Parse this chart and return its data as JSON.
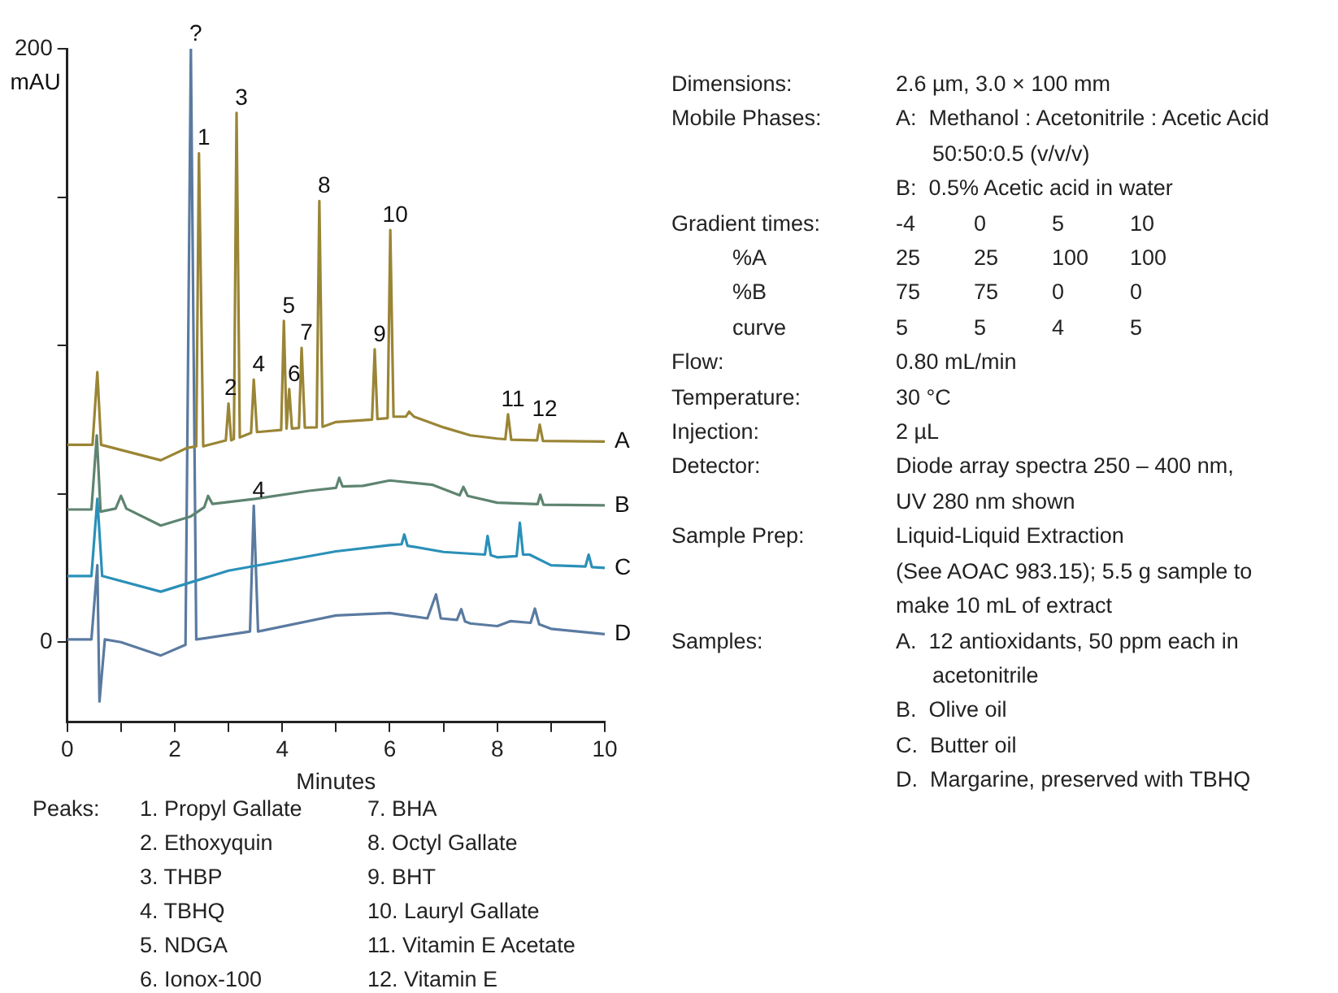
{
  "chart_data": {
    "type": "line",
    "xlabel": "Minutes",
    "ylabel": "mAU",
    "xlim": [
      0,
      10
    ],
    "xticks": [
      0,
      {
        "value": 1,
        "label": null
      },
      2,
      {
        "value": 3,
        "label": null
      },
      4,
      {
        "value": 5,
        "label": null
      },
      6,
      {
        "value": 7,
        "label": null
      },
      8,
      {
        "value": 9,
        "label": null
      },
      10
    ],
    "ylim": [
      -27,
      200
    ],
    "yticks": [
      0,
      {
        "value": 50,
        "label": null
      },
      {
        "value": 100,
        "label": null
      },
      {
        "value": 150,
        "label": null
      },
      200
    ],
    "grid": false,
    "legend": false,
    "marker": "none",
    "line_style": "solid",
    "series": [
      {
        "name": "A",
        "color": "#9a8535",
        "x": [
          0,
          0.47,
          0.56,
          0.63,
          1.74,
          2.22,
          2.4,
          2.45,
          2.53,
          2.95,
          3.0,
          3.05,
          3.1,
          3.15,
          3.21,
          3.42,
          3.47,
          3.53,
          3.98,
          4.03,
          4.08,
          4.13,
          4.18,
          4.31,
          4.36,
          4.42,
          4.64,
          4.69,
          4.75,
          5.0,
          5.67,
          5.72,
          5.77,
          5.96,
          6.01,
          6.07,
          6.3,
          6.36,
          6.45,
          7.0,
          7.5,
          8.0,
          8.15,
          8.2,
          8.26,
          8.74,
          8.79,
          8.85,
          10
        ],
        "values": [
          66.5,
          66.5,
          91,
          66.5,
          61.3,
          65.4,
          66,
          164.8,
          66,
          68,
          80.4,
          68,
          68.5,
          178.4,
          69,
          70.5,
          88.5,
          70.8,
          71.5,
          108.3,
          72,
          85.3,
          72,
          72.2,
          99.2,
          72.3,
          72.4,
          148.7,
          72.6,
          74.2,
          75,
          98.7,
          75.2,
          75.5,
          138.9,
          76,
          76,
          77.7,
          76,
          72.4,
          69.7,
          68.6,
          68.4,
          76.8,
          68.2,
          68,
          73.3,
          67.8,
          67.6
        ]
      },
      {
        "name": "B",
        "color": "#5e8470",
        "x": [
          0,
          0.45,
          0.55,
          0.62,
          0.9,
          1.0,
          1.1,
          1.74,
          2.3,
          2.55,
          2.62,
          2.7,
          3.5,
          4.5,
          5.0,
          5.06,
          5.12,
          5.5,
          6.0,
          6.8,
          7.3,
          7.37,
          7.45,
          8.0,
          8.75,
          8.8,
          8.86,
          10
        ],
        "values": [
          44.7,
          44.7,
          69.7,
          44,
          45,
          49.3,
          45,
          39.3,
          42.4,
          45.5,
          49.3,
          46.6,
          48.3,
          51,
          52,
          55.4,
          52.5,
          52.7,
          54.5,
          53,
          49.5,
          52.3,
          49.3,
          47,
          46.5,
          49.7,
          46.3,
          46.1
        ]
      },
      {
        "name": "C",
        "color": "#2a90b8",
        "x": [
          0,
          0.45,
          0.56,
          0.65,
          1.74,
          3.0,
          5.0,
          6.0,
          6.22,
          6.27,
          6.33,
          7.0,
          7.77,
          7.82,
          7.88,
          8.0,
          8.36,
          8.42,
          8.48,
          8.6,
          9.0,
          9.64,
          9.7,
          9.76,
          10
        ],
        "values": [
          22.3,
          22.3,
          48.3,
          22.3,
          17,
          24.1,
          30.6,
          32.7,
          33,
          36.3,
          32.5,
          30.4,
          29.5,
          35.8,
          29.3,
          28.6,
          29,
          40.2,
          29.5,
          29.5,
          25.9,
          25.5,
          29.5,
          25.3,
          25
        ]
      },
      {
        "name": "D",
        "color": "#5a7aa0",
        "x": [
          0,
          0.45,
          0.56,
          0.6,
          0.7,
          1.0,
          1.74,
          2.2,
          2.3,
          2.4,
          3.4,
          3.47,
          3.55,
          5.0,
          6.0,
          6.7,
          6.86,
          6.95,
          7.25,
          7.33,
          7.4,
          7.5,
          8.0,
          8.25,
          8.62,
          8.7,
          8.78,
          9.0,
          10
        ],
        "values": [
          0.9,
          0.9,
          25.9,
          -20,
          0.9,
          0,
          -4.5,
          -0.9,
          200,
          0.9,
          3.6,
          46,
          3.6,
          9,
          9.8,
          8,
          16.1,
          8,
          7.5,
          11.1,
          7,
          6.3,
          5.4,
          7.1,
          6.5,
          11.3,
          6,
          4.5,
          2.7
        ]
      }
    ],
    "annotations": [
      {
        "text": "?",
        "x": 2.3,
        "y": 200
      },
      {
        "text": "1",
        "x": 2.45,
        "y": 164.8
      },
      {
        "text": "2",
        "x": 2.95,
        "y": 80.4
      },
      {
        "text": "3",
        "x": 3.15,
        "y": 178.4
      },
      {
        "text": "4",
        "x": 3.47,
        "y": 88.5
      },
      {
        "text": "5",
        "x": 4.03,
        "y": 108.3
      },
      {
        "text": "6",
        "x": 4.13,
        "y": 85.3
      },
      {
        "text": "7",
        "x": 4.36,
        "y": 99.2
      },
      {
        "text": "8",
        "x": 4.69,
        "y": 148.7
      },
      {
        "text": "9",
        "x": 5.72,
        "y": 98.7
      },
      {
        "text": "10",
        "x": 6.01,
        "y": 138.9
      },
      {
        "text": "11",
        "x": 8.2,
        "y": 76.8
      },
      {
        "text": "12",
        "x": 8.79,
        "y": 73.3
      },
      {
        "text": "4",
        "x": 3.47,
        "y": 46
      },
      "Peaks:\t1. Propyl Gallate\t7. BHA",
      "\t2. Ethoxyquin\t8. Octyl Gallate",
      "\t3. THBP\t9. BHT",
      "\t4. TBHQ\t10. Lauryl Gallate",
      "\t5. NDGA\t11. Vitamin E Acetate",
      "\t6. Ionox-100\t12. Vitamin E",
      "Dimensions:\t2.6 µm, 3.0 × 100 mm",
      "Mobile Phases:\tA:  Methanol : Acetonitrile : Acetic Acid",
      "\t      50:50:0.5 (v/v/v)",
      "\tB:  0.5% Acetic acid in water",
      "Gradient times:\t-4\t0\t5\t10",
      "          %A\t25\t25\t100\t100",
      "          %B\t75\t75\t0\t0",
      "          curve\t5\t5\t4\t5",
      "Flow:\t0.80 mL/min",
      "Temperature:\t30 °C",
      "Injection:\t2 µL",
      "Detector:\tDiode array spectra 250 – 400 nm,",
      "\tUV 280 nm shown",
      "Sample Prep:\tLiquid-Liquid Extraction",
      "\t(See AOAC 983.15); 5.5 g sample to",
      "\tmake 10 mL of extract",
      "Samples:\tA.  12 antioxidants, 50 ppm each in",
      "\t      acetonitrile",
      "\tB.  Olive oil",
      "\tC.  Butter oil",
      "\tD.  Margarine, preserved with TBHQ"
    ]
  }
}
